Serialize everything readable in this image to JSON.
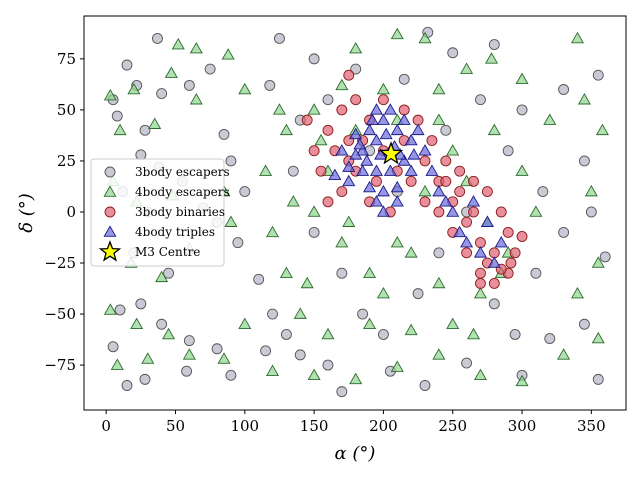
{
  "chart_data": {
    "type": "scatter",
    "xlabel": "α (°)",
    "ylabel": "δ (°)",
    "xlim": [
      -16,
      375
    ],
    "ylim": [
      -97,
      96
    ],
    "x_ticks": [
      0,
      50,
      100,
      150,
      200,
      250,
      300,
      350
    ],
    "y_ticks": [
      -75,
      -50,
      -25,
      0,
      25,
      50,
      75
    ],
    "grid": false,
    "legend_position": "center-left",
    "series": [
      {
        "name": "3body escapers",
        "marker": "circle",
        "color": "#b3b3c6",
        "edge_color": "#555555",
        "sampled_points": [
          [
            37,
            85
          ],
          [
            5,
            55
          ],
          [
            15,
            72
          ],
          [
            22,
            62
          ],
          [
            8,
            47
          ],
          [
            28,
            40
          ],
          [
            40,
            58
          ],
          [
            60,
            62
          ],
          [
            75,
            70
          ],
          [
            85,
            38
          ],
          [
            90,
            25
          ],
          [
            25,
            28
          ],
          [
            38,
            22
          ],
          [
            12,
            10
          ],
          [
            30,
            0
          ],
          [
            55,
            15
          ],
          [
            70,
            2
          ],
          [
            80,
            -5
          ],
          [
            100,
            10
          ],
          [
            95,
            -15
          ],
          [
            20,
            -20
          ],
          [
            45,
            -30
          ],
          [
            10,
            -48
          ],
          [
            25,
            -45
          ],
          [
            40,
            -55
          ],
          [
            60,
            -63
          ],
          [
            58,
            -78
          ],
          [
            80,
            -67
          ],
          [
            90,
            -80
          ],
          [
            15,
            -85
          ],
          [
            28,
            -82
          ],
          [
            5,
            -66
          ],
          [
            110,
            -33
          ],
          [
            120,
            -50
          ],
          [
            130,
            -60
          ],
          [
            140,
            -70
          ],
          [
            115,
            -68
          ],
          [
            160,
            -75
          ],
          [
            170,
            -88
          ],
          [
            205,
            -78
          ],
          [
            230,
            -85
          ],
          [
            260,
            -74
          ],
          [
            300,
            -80
          ],
          [
            320,
            -62
          ],
          [
            345,
            -55
          ],
          [
            355,
            -82
          ],
          [
            360,
            -22
          ],
          [
            350,
            0
          ],
          [
            345,
            25
          ],
          [
            355,
            67
          ],
          [
            330,
            60
          ],
          [
            300,
            50
          ],
          [
            280,
            82
          ],
          [
            250,
            78
          ],
          [
            232,
            88
          ],
          [
            215,
            65
          ],
          [
            180,
            70
          ],
          [
            150,
            75
          ],
          [
            125,
            85
          ],
          [
            118,
            62
          ],
          [
            140,
            45
          ],
          [
            160,
            55
          ],
          [
            190,
            30
          ],
          [
            210,
            10
          ],
          [
            240,
            -20
          ],
          [
            260,
            0
          ],
          [
            280,
            -45
          ],
          [
            295,
            -60
          ],
          [
            310,
            -30
          ],
          [
            330,
            -10
          ],
          [
            315,
            10
          ],
          [
            290,
            30
          ],
          [
            270,
            55
          ],
          [
            245,
            40
          ],
          [
            225,
            -40
          ],
          [
            200,
            -60
          ],
          [
            185,
            -50
          ],
          [
            170,
            -30
          ],
          [
            150,
            -10
          ],
          [
            135,
            20
          ]
        ]
      },
      {
        "name": "4body escapers",
        "marker": "triangle",
        "color": "#90d490",
        "edge_color": "#2d6b2d",
        "sampled_points": [
          [
            52,
            82
          ],
          [
            88,
            77
          ],
          [
            210,
            87
          ],
          [
            230,
            85
          ],
          [
            278,
            75
          ],
          [
            340,
            85
          ],
          [
            20,
            60
          ],
          [
            47,
            68
          ],
          [
            65,
            80
          ],
          [
            180,
            80
          ],
          [
            3,
            57
          ],
          [
            10,
            40
          ],
          [
            35,
            43
          ],
          [
            65,
            55
          ],
          [
            100,
            60
          ],
          [
            5,
            15
          ],
          [
            22,
            5
          ],
          [
            48,
            8
          ],
          [
            85,
            10
          ],
          [
            90,
            -5
          ],
          [
            60,
            -18
          ],
          [
            18,
            -25
          ],
          [
            40,
            -32
          ],
          [
            3,
            -48
          ],
          [
            22,
            -55
          ],
          [
            45,
            -60
          ],
          [
            8,
            -75
          ],
          [
            30,
            -72
          ],
          [
            60,
            -70
          ],
          [
            85,
            -72
          ],
          [
            100,
            -55
          ],
          [
            120,
            -78
          ],
          [
            150,
            -80
          ],
          [
            180,
            -82
          ],
          [
            210,
            -76
          ],
          [
            240,
            -70
          ],
          [
            270,
            -80
          ],
          [
            300,
            -83
          ],
          [
            330,
            -70
          ],
          [
            355,
            -62
          ],
          [
            340,
            -40
          ],
          [
            355,
            -25
          ],
          [
            350,
            10
          ],
          [
            358,
            40
          ],
          [
            345,
            55
          ],
          [
            320,
            45
          ],
          [
            300,
            65
          ],
          [
            260,
            70
          ],
          [
            240,
            60
          ],
          [
            200,
            60
          ],
          [
            170,
            62
          ],
          [
            150,
            50
          ],
          [
            130,
            40
          ],
          [
            115,
            20
          ],
          [
            120,
            -10
          ],
          [
            130,
            -30
          ],
          [
            140,
            -50
          ],
          [
            160,
            -60
          ],
          [
            190,
            -55
          ],
          [
            220,
            -58
          ],
          [
            250,
            -55
          ],
          [
            270,
            -40
          ],
          [
            290,
            -20
          ],
          [
            310,
            0
          ],
          [
            300,
            20
          ],
          [
            280,
            40
          ],
          [
            250,
            30
          ],
          [
            230,
            10
          ],
          [
            210,
            -15
          ],
          [
            190,
            -30
          ],
          [
            170,
            -15
          ],
          [
            150,
            0
          ],
          [
            160,
            20
          ],
          [
            180,
            40
          ],
          [
            210,
            45
          ],
          [
            240,
            45
          ],
          [
            260,
            15
          ],
          [
            275,
            -5
          ],
          [
            285,
            -30
          ],
          [
            265,
            -60
          ],
          [
            240,
            -35
          ],
          [
            220,
            -20
          ],
          [
            200,
            -40
          ],
          [
            175,
            -5
          ],
          [
            155,
            35
          ],
          [
            145,
            -35
          ],
          [
            135,
            5
          ],
          [
            125,
            50
          ]
        ]
      },
      {
        "name": "3body binaries",
        "marker": "circle",
        "color": "#e06070",
        "edge_color": "#8b1a1a",
        "sampled_points": [
          [
            160,
            40
          ],
          [
            170,
            50
          ],
          [
            180,
            55
          ],
          [
            190,
            45
          ],
          [
            200,
            55
          ],
          [
            215,
            50
          ],
          [
            225,
            45
          ],
          [
            235,
            35
          ],
          [
            245,
            25
          ],
          [
            255,
            20
          ],
          [
            265,
            15
          ],
          [
            275,
            10
          ],
          [
            285,
            0
          ],
          [
            290,
            -10
          ],
          [
            295,
            -20
          ],
          [
            290,
            -30
          ],
          [
            280,
            -35
          ],
          [
            270,
            -30
          ],
          [
            260,
            -20
          ],
          [
            250,
            -10
          ],
          [
            240,
            0
          ],
          [
            230,
            5
          ],
          [
            220,
            15
          ],
          [
            210,
            20
          ],
          [
            195,
            15
          ],
          [
            180,
            20
          ],
          [
            170,
            10
          ],
          [
            160,
            5
          ],
          [
            155,
            20
          ],
          [
            165,
            30
          ],
          [
            175,
            35
          ],
          [
            185,
            35
          ],
          [
            200,
            30
          ],
          [
            215,
            35
          ],
          [
            230,
            25
          ],
          [
            240,
            15
          ],
          [
            250,
            5
          ],
          [
            260,
            -5
          ],
          [
            270,
            -15
          ],
          [
            280,
            -20
          ],
          [
            285,
            -28
          ],
          [
            275,
            -25
          ],
          [
            265,
            0
          ],
          [
            255,
            10
          ],
          [
            245,
            15
          ],
          [
            175,
            25
          ],
          [
            190,
            5
          ],
          [
            205,
            0
          ],
          [
            150,
            30
          ],
          [
            145,
            45
          ],
          [
            175,
            67
          ],
          [
            270,
            -35
          ],
          [
            300,
            -12
          ],
          [
            292,
            -25
          ]
        ]
      },
      {
        "name": "4body triples",
        "marker": "triangle",
        "color": "#6a6ad8",
        "edge_color": "#1a1a8b",
        "sampled_points": [
          [
            185,
            30
          ],
          [
            195,
            35
          ],
          [
            205,
            30
          ],
          [
            210,
            40
          ],
          [
            200,
            45
          ],
          [
            190,
            40
          ],
          [
            180,
            28
          ],
          [
            185,
            20
          ],
          [
            195,
            20
          ],
          [
            205,
            20
          ],
          [
            215,
            25
          ],
          [
            220,
            35
          ],
          [
            225,
            40
          ],
          [
            215,
            45
          ],
          [
            205,
            50
          ],
          [
            195,
            50
          ],
          [
            180,
            38
          ],
          [
            175,
            22
          ],
          [
            190,
            12
          ],
          [
            200,
            10
          ],
          [
            210,
            12
          ],
          [
            220,
            20
          ],
          [
            230,
            30
          ],
          [
            235,
            20
          ],
          [
            175,
            15
          ],
          [
            170,
            30
          ],
          [
            165,
            18
          ],
          [
            210,
            5
          ],
          [
            200,
            0
          ],
          [
            195,
            5
          ],
          [
            240,
            10
          ],
          [
            250,
            0
          ],
          [
            255,
            -10
          ],
          [
            260,
            -15
          ],
          [
            270,
            -20
          ],
          [
            280,
            -25
          ],
          [
            285,
            -15
          ],
          [
            275,
            -5
          ],
          [
            265,
            5
          ],
          [
            245,
            5
          ],
          [
            188,
            25
          ],
          [
            198,
            28
          ],
          [
            208,
            32
          ],
          [
            212,
            28
          ],
          [
            202,
            38
          ],
          [
            192,
            45
          ],
          [
            183,
            33
          ],
          [
            222,
            28
          ]
        ]
      },
      {
        "name": "M3 Centre",
        "marker": "star",
        "color": "#ffff00",
        "edge_color": "#000000",
        "points": [
          [
            205.5,
            28.4
          ]
        ]
      }
    ]
  }
}
